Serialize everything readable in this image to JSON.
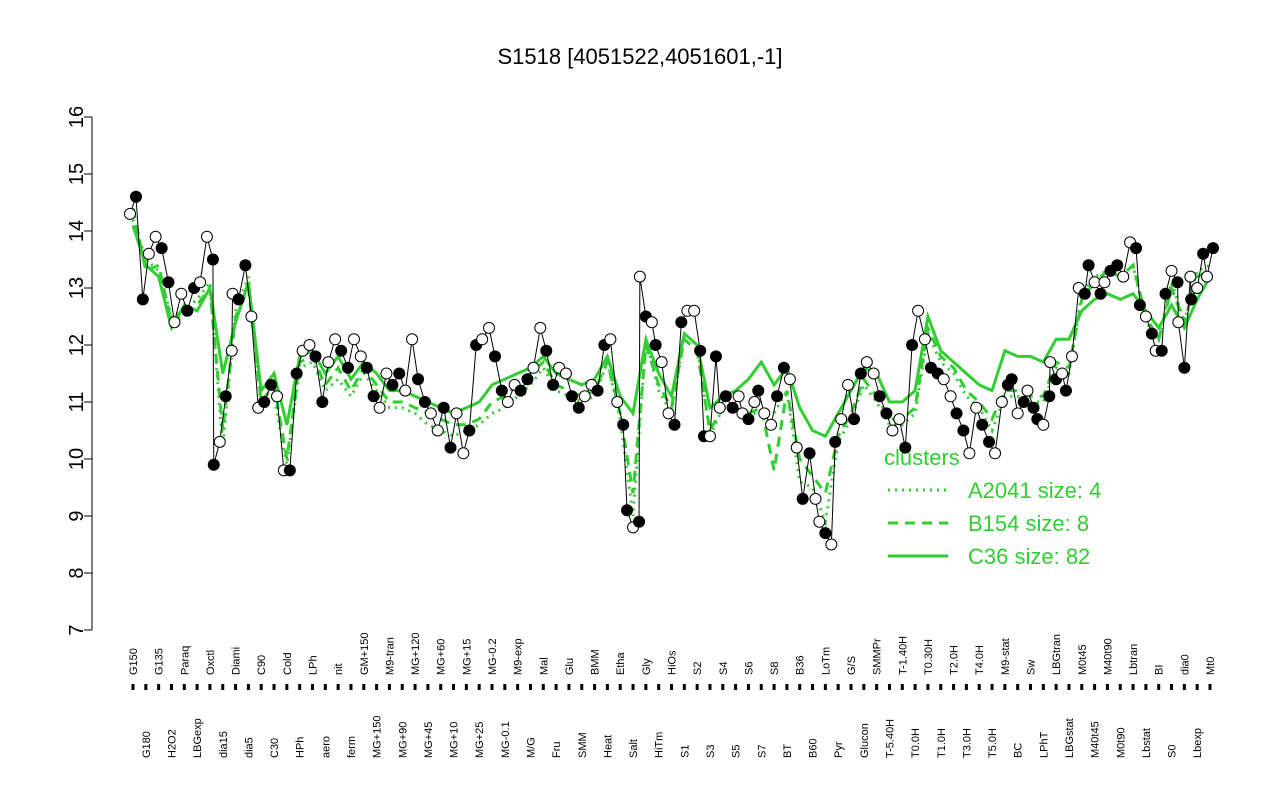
{
  "chart_data": {
    "type": "line",
    "title": "S1518 [4051522,4051601,-1]",
    "xlabel": "",
    "ylabel": "",
    "ylim": [
      7,
      16
    ],
    "yticks": [
      7,
      8,
      9,
      10,
      11,
      12,
      13,
      14,
      15,
      16
    ],
    "x_tick_labels": [
      "G150",
      "G180",
      "G135",
      "H2O2",
      "Paraq",
      "LBGexp",
      "Oxctl",
      "dia15",
      "Diami",
      "dia5",
      "C90",
      "C30",
      "Cold",
      "HPh",
      "LPh",
      "aero",
      "nit",
      "ferm",
      "GM+150",
      "MG+150",
      "M9-tran",
      "MG+90",
      "MG+120",
      "MG+45",
      "MG+60",
      "MG+10",
      "MG+15",
      "MG+25",
      "MG-0.2",
      "MG-0.1",
      "M9-exp",
      "M/G",
      "Mal",
      "Fru",
      "Glu",
      "SMM",
      "BMM",
      "Heat",
      "Etha",
      "Salt",
      "Gly",
      "HiTm",
      "HiOs",
      "S1",
      "S2",
      "S3",
      "S4",
      "S5",
      "S6",
      "S7",
      "S8",
      "BT",
      "B36",
      "B60",
      "LoTm",
      "Pyr",
      "G/S",
      "Glucon",
      "SMMPr",
      "T-5.40H",
      "T-1.40H",
      "T0.0H",
      "T0.30H",
      "T1.0H",
      "T2.0H",
      "T3.0H",
      "T4.0H",
      "T5.0H",
      "M9-stat",
      "BC",
      "Sw",
      "LPhT",
      "LBGtran",
      "LBGstat",
      "M0t45",
      "M40t45",
      "M40t90",
      "M0t90",
      "Lbtran",
      "Lbstat",
      "BI",
      "S0",
      "dia0",
      "Lbexp",
      "Mt0"
    ],
    "series": [
      {
        "name": "A2041 size: 4",
        "style": "dotted",
        "values": [
          14.2,
          13.5,
          13.3,
          12.5,
          12.6,
          12.8,
          13.1,
          10.2,
          12.6,
          13.2,
          10.9,
          11.1,
          9.9,
          11.6,
          11.7,
          11.2,
          11.4,
          11.1,
          11.5,
          11.2,
          10.9,
          10.9,
          10.8,
          10.6,
          10.5,
          10.4,
          10.5,
          10.6,
          10.8,
          10.9,
          11.1,
          11.3,
          11.6,
          11.2,
          11.1,
          11.0,
          11.1,
          11.7,
          10.7,
          9.0,
          12.1,
          11.2,
          10.8,
          12.2,
          12.0,
          10.4,
          10.9,
          10.9,
          10.8,
          10.8,
          10.8,
          11.2,
          9.6,
          9.5,
          8.9,
          10.3,
          10.7,
          11.3,
          11.0,
          10.6,
          10.6,
          10.8,
          12.2,
          11.7,
          11.5,
          11.1,
          10.9,
          10.5,
          11.1,
          11.1,
          11.0,
          11.0,
          11.6,
          11.5,
          12.9,
          13.2,
          13.3,
          13.2,
          13.4,
          12.4,
          12.1,
          13.1,
          12.4,
          13.3,
          13.4
        ]
      },
      {
        "name": "B154 size: 8",
        "style": "dashed",
        "values": [
          14.4,
          13.3,
          13.4,
          12.4,
          12.5,
          12.7,
          13.0,
          10.5,
          12.5,
          13.0,
          11.0,
          11.3,
          10.0,
          11.7,
          11.8,
          11.3,
          11.6,
          11.2,
          11.6,
          11.3,
          11.0,
          11.0,
          10.9,
          10.8,
          10.7,
          10.6,
          10.6,
          10.7,
          11.0,
          11.1,
          11.3,
          11.5,
          11.7,
          11.3,
          11.2,
          11.1,
          11.2,
          11.7,
          10.8,
          9.4,
          12.0,
          11.3,
          10.9,
          12.1,
          11.9,
          10.5,
          10.9,
          10.9,
          10.8,
          10.9,
          9.8,
          11.2,
          10.0,
          9.7,
          9.4,
          10.4,
          10.8,
          11.4,
          11.1,
          10.7,
          10.7,
          10.9,
          12.3,
          11.8,
          11.6,
          11.2,
          11.0,
          10.7,
          11.2,
          11.2,
          11.1,
          11.1,
          11.7,
          11.6,
          12.8,
          13.1,
          13.3,
          13.2,
          13.4,
          12.5,
          12.1,
          13.0,
          12.4,
          13.2,
          13.3
        ]
      },
      {
        "name": "C36 size: 82",
        "style": "solid",
        "values": [
          14.1,
          13.4,
          13.2,
          12.3,
          12.7,
          12.6,
          13.0,
          11.5,
          12.4,
          13.1,
          11.2,
          11.5,
          10.6,
          11.8,
          11.9,
          11.5,
          11.8,
          11.4,
          11.7,
          11.5,
          11.2,
          11.2,
          11.1,
          11.0,
          10.9,
          10.8,
          10.9,
          11.0,
          11.3,
          11.4,
          11.5,
          11.6,
          11.8,
          11.5,
          11.4,
          11.3,
          11.4,
          11.8,
          11.1,
          10.8,
          12.1,
          11.5,
          11.1,
          12.2,
          12.0,
          10.9,
          11.1,
          11.2,
          11.4,
          11.7,
          11.3,
          11.6,
          10.9,
          10.5,
          10.4,
          10.8,
          11.2,
          11.6,
          11.5,
          11.0,
          11.0,
          11.2,
          12.5,
          11.9,
          11.7,
          11.5,
          11.3,
          11.2,
          11.9,
          11.8,
          11.8,
          11.7,
          12.1,
          12.1,
          12.6,
          12.8,
          12.9,
          12.8,
          12.9,
          12.6,
          12.3,
          12.7,
          12.3,
          12.8,
          13.2
        ]
      }
    ],
    "points": [
      {
        "label": "G150",
        "values": [
          14.3,
          14.6
        ]
      },
      {
        "label": "G180",
        "values": [
          12.8,
          13.6
        ]
      },
      {
        "label": "G135",
        "values": [
          13.9,
          13.7
        ]
      },
      {
        "label": "H2O2",
        "values": [
          13.1,
          12.4
        ]
      },
      {
        "label": "Paraq",
        "values": [
          12.9,
          12.6
        ]
      },
      {
        "label": "LBGexp",
        "values": [
          13.0,
          13.1
        ]
      },
      {
        "label": "Oxctl",
        "values": [
          13.9,
          13.5
        ]
      },
      {
        "label": "dia15",
        "values": [
          9.9,
          10.3,
          11.1,
          11.9
        ]
      },
      {
        "label": "Diami",
        "values": [
          12.9,
          12.8
        ]
      },
      {
        "label": "dia5",
        "values": [
          13.4,
          12.5
        ]
      },
      {
        "label": "C90",
        "values": [
          10.9,
          11.0
        ]
      },
      {
        "label": "C30",
        "values": [
          11.3,
          11.1
        ]
      },
      {
        "label": "Cold",
        "values": [
          9.8,
          9.8
        ]
      },
      {
        "label": "HPh",
        "values": [
          11.5,
          11.9
        ]
      },
      {
        "label": "LPh",
        "values": [
          12.0,
          11.8
        ]
      },
      {
        "label": "aero",
        "values": [
          11.0,
          11.7
        ]
      },
      {
        "label": "nit",
        "values": [
          12.1,
          11.9
        ]
      },
      {
        "label": "ferm",
        "values": [
          11.6,
          12.1
        ]
      },
      {
        "label": "GM+150",
        "values": [
          11.8,
          11.6
        ]
      },
      {
        "label": "MG+150",
        "values": [
          11.1,
          10.9
        ]
      },
      {
        "label": "M9-tran",
        "values": [
          11.5,
          11.3
        ]
      },
      {
        "label": "MG+90",
        "values": [
          11.5,
          11.2
        ]
      },
      {
        "label": "MG+120",
        "values": [
          12.1,
          11.4
        ]
      },
      {
        "label": "MG+45",
        "values": [
          11.0,
          10.8
        ]
      },
      {
        "label": "MG+60",
        "values": [
          10.5,
          10.9
        ]
      },
      {
        "label": "MG+10",
        "values": [
          10.2,
          10.8
        ]
      },
      {
        "label": "MG+15",
        "values": [
          10.1,
          10.5
        ]
      },
      {
        "label": "MG+25",
        "values": [
          12.0,
          12.1
        ]
      },
      {
        "label": "MG-0.2",
        "values": [
          12.3,
          11.8
        ]
      },
      {
        "label": "MG-0.1",
        "values": [
          11.2,
          11.0
        ]
      },
      {
        "label": "M9-exp",
        "values": [
          11.3,
          11.2
        ]
      },
      {
        "label": "M/G",
        "values": [
          11.4,
          11.6
        ]
      },
      {
        "label": "Mal",
        "values": [
          12.3,
          11.9
        ]
      },
      {
        "label": "Fru",
        "values": [
          11.3,
          11.6
        ]
      },
      {
        "label": "Glu",
        "values": [
          11.5,
          11.1
        ]
      },
      {
        "label": "SMM",
        "values": [
          10.9,
          11.1
        ]
      },
      {
        "label": "BMM",
        "values": [
          11.3,
          11.2
        ]
      },
      {
        "label": "Heat",
        "values": [
          12.0,
          12.1
        ]
      },
      {
        "label": "Etha",
        "values": [
          11.0,
          10.6
        ]
      },
      {
        "label": "Salt",
        "values": [
          9.1,
          8.8,
          8.9
        ]
      },
      {
        "label": "Gly",
        "values": [
          13.2,
          12.5,
          12.4
        ]
      },
      {
        "label": "HiTm",
        "values": [
          12.0,
          11.7
        ]
      },
      {
        "label": "HiOs",
        "values": [
          10.8,
          10.6
        ]
      },
      {
        "label": "S1",
        "values": [
          12.4,
          12.6
        ]
      },
      {
        "label": "S2",
        "values": [
          12.6,
          11.9
        ]
      },
      {
        "label": "S3",
        "values": [
          10.4,
          10.4,
          11.8
        ]
      },
      {
        "label": "S4",
        "values": [
          10.9,
          11.1
        ]
      },
      {
        "label": "S5",
        "values": [
          10.9,
          11.1
        ]
      },
      {
        "label": "S6",
        "values": [
          10.8,
          10.7,
          11.0
        ]
      },
      {
        "label": "S7",
        "values": [
          11.2,
          10.8
        ]
      },
      {
        "label": "S8",
        "values": [
          10.6,
          11.1
        ]
      },
      {
        "label": "BT",
        "values": [
          11.6,
          11.4
        ]
      },
      {
        "label": "B36",
        "values": [
          10.2,
          9.3
        ]
      },
      {
        "label": "B60",
        "values": [
          10.1,
          9.3
        ]
      },
      {
        "label": "LoTm",
        "values": [
          8.9,
          8.7,
          8.5
        ]
      },
      {
        "label": "Pyr",
        "values": [
          10.3,
          10.7
        ]
      },
      {
        "label": "G/S",
        "values": [
          11.3,
          10.7
        ]
      },
      {
        "label": "Glucon",
        "values": [
          11.5,
          11.7
        ]
      },
      {
        "label": "SMMPr",
        "values": [
          11.5,
          11.1
        ]
      },
      {
        "label": "T-5.40H",
        "values": [
          10.8,
          10.5
        ]
      },
      {
        "label": "T-1.40H",
        "values": [
          10.7,
          10.2
        ]
      },
      {
        "label": "T0.0H",
        "values": [
          12.0,
          12.6
        ]
      },
      {
        "label": "T0.30H",
        "values": [
          12.1,
          11.6
        ]
      },
      {
        "label": "T1.0H",
        "values": [
          11.5,
          11.4
        ]
      },
      {
        "label": "T2.0H",
        "values": [
          11.1,
          10.8
        ]
      },
      {
        "label": "T3.0H",
        "values": [
          10.5,
          10.1
        ]
      },
      {
        "label": "T4.0H",
        "values": [
          10.9,
          10.6
        ]
      },
      {
        "label": "T5.0H",
        "values": [
          10.3,
          10.1
        ]
      },
      {
        "label": "M9-stat",
        "values": [
          11.0,
          11.3
        ]
      },
      {
        "label": "BC",
        "values": [
          11.4,
          10.8,
          11.0
        ]
      },
      {
        "label": "Sw",
        "values": [
          11.2,
          10.9
        ]
      },
      {
        "label": "LPhT",
        "values": [
          10.7,
          10.6,
          11.1
        ]
      },
      {
        "label": "LBGtran",
        "values": [
          11.7,
          11.4,
          11.5
        ]
      },
      {
        "label": "LBGstat",
        "values": [
          11.2,
          11.8
        ]
      },
      {
        "label": "M0t45",
        "values": [
          13.0,
          12.9
        ]
      },
      {
        "label": "M40t45",
        "values": [
          13.4,
          13.1,
          12.9
        ]
      },
      {
        "label": "M40t90",
        "values": [
          13.1,
          13.3
        ]
      },
      {
        "label": "M0t90",
        "values": [
          13.4,
          13.2
        ]
      },
      {
        "label": "Lbtran",
        "values": [
          13.8,
          13.7
        ]
      },
      {
        "label": "Lbstat",
        "values": [
          12.7,
          12.5,
          12.2
        ]
      },
      {
        "label": "BI",
        "values": [
          11.9,
          11.9
        ]
      },
      {
        "label": "S0",
        "values": [
          12.9,
          13.3,
          13.1
        ]
      },
      {
        "label": "dia0",
        "values": [
          12.4,
          11.6,
          13.2
        ]
      },
      {
        "label": "Lbexp",
        "values": [
          12.8,
          13.0,
          13.6
        ]
      },
      {
        "label": "Mt0",
        "values": [
          13.2,
          13.7
        ]
      }
    ],
    "legend": {
      "title": "clusters",
      "placement": "bottom-right",
      "entries": [
        "A2041 size: 4",
        "B154 size: 8",
        "C36 size: 82"
      ]
    },
    "colors": {
      "line": "#32CD32",
      "axis": "#000000",
      "point_open": "#ffffff",
      "point_filled": "#000000"
    },
    "grid": false
  }
}
